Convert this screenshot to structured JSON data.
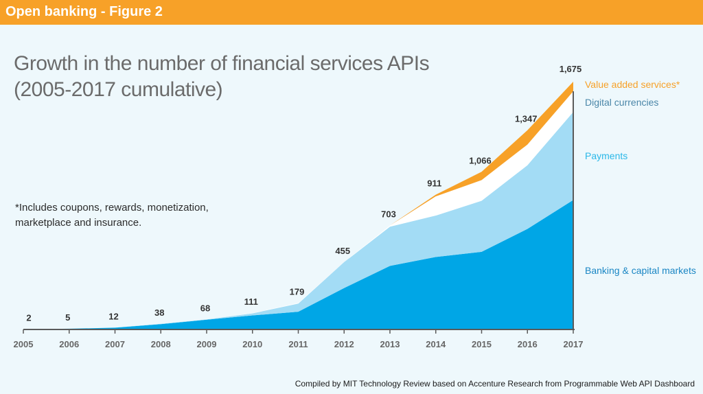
{
  "banner": {
    "title": "Open banking - Figure 2"
  },
  "note": {
    "text": "*Includes coupons, rewards, monetization, marketplace and insurance."
  },
  "source": {
    "text": "Compiled by MIT Technology Review based on Accenture Research from Programmable Web API Dashboard"
  },
  "colors": {
    "banner": "#f7a128",
    "banking": "#00a6e6",
    "payments": "#a3dcf5",
    "digital": "#ffffff",
    "value_added": "#f7a128",
    "axis": "#5a5a5a",
    "legend_value_added": "#f7a128",
    "legend_digital": "#4a86a8",
    "legend_payments": "#2bb8e8",
    "legend_banking": "#1a86c4"
  },
  "chart_data": {
    "type": "area",
    "stacked": true,
    "title": [
      "Growth in the number of financial services APIs",
      "(2005-2017 cumulative)"
    ],
    "xlabel": "",
    "ylabel": "",
    "x": [
      "2005",
      "2006",
      "2007",
      "2008",
      "2009",
      "2010",
      "2011",
      "2012",
      "2013",
      "2014",
      "2015",
      "2016",
      "2017"
    ],
    "totals": [
      "2",
      "5",
      "12",
      "38",
      "68",
      "111",
      "179",
      "455",
      "703",
      "911",
      "1,066",
      "1,347",
      "1,675"
    ],
    "ylim": [
      0,
      1675
    ],
    "grid": false,
    "legend_position": "right",
    "series": [
      {
        "name": "Banking & capital markets",
        "values": [
          2,
          5,
          12,
          36,
          66,
          95,
          120,
          280,
          430,
          490,
          525,
          680,
          875
        ]
      },
      {
        "name": "Payments",
        "values": [
          0,
          0,
          0,
          2,
          2,
          14,
          55,
          175,
          265,
          280,
          345,
          430,
          595
        ]
      },
      {
        "name": "Digital currencies",
        "values": [
          0,
          0,
          0,
          0,
          0,
          2,
          4,
          0,
          8,
          130,
          140,
          140,
          140
        ]
      },
      {
        "name": "Value added services*",
        "values": [
          0,
          0,
          0,
          0,
          0,
          0,
          0,
          0,
          0,
          11,
          56,
          97,
          65
        ]
      }
    ]
  }
}
